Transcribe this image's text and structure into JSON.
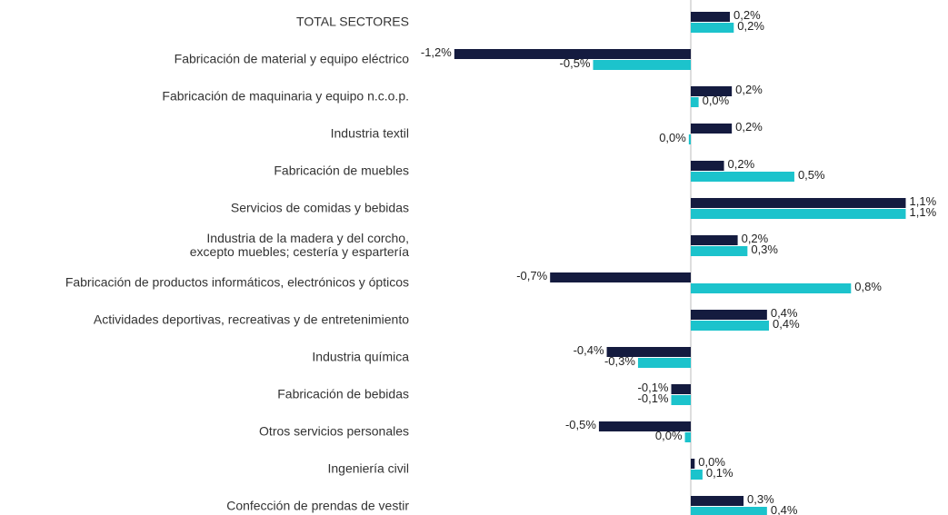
{
  "chart_data": {
    "type": "hbar",
    "categories": [
      "TOTAL SECTORES",
      "Fabricación de material y equipo eléctrico",
      "Fabricación de maquinaria y equipo n.c.o.p.",
      "Industria textil",
      "Fabricación de muebles",
      "Servicios de comidas y bebidas",
      "Industria de la madera y del corcho,\nexcepto muebles; cestería y espartería",
      "Fabricación de productos informáticos, electrónicos y ópticos",
      "Actividades deportivas, recreativas y de entretenimiento",
      "Industria química",
      "Fabricación de bebidas",
      "Otros servicios personales",
      "Ingeniería civil",
      "Confección de prendas de vestir"
    ],
    "series": [
      {
        "color": "#141b3f",
        "values": [
          0.2,
          -1.21,
          0.21,
          0.21,
          0.17,
          1.1,
          0.24,
          -0.72,
          0.39,
          -0.43,
          -0.1,
          -0.47,
          0.02,
          0.27
        ],
        "value_labels": [
          "0,2%",
          "-1,2%",
          "0,2%",
          "0,2%",
          "0,2%",
          "1,1%",
          "0,2%",
          "-0,7%",
          "0,4%",
          "-0,4%",
          "-0,1%",
          "-0,5%",
          "0,0%",
          "0,3%"
        ]
      },
      {
        "color": "#1cc3cc",
        "values": [
          0.22,
          -0.5,
          0.04,
          -0.01,
          0.53,
          1.1,
          0.29,
          0.82,
          0.4,
          -0.27,
          -0.1,
          -0.03,
          0.06,
          0.39
        ],
        "value_labels": [
          "0,2%",
          "-0,5%",
          "0,0%",
          "0,0%",
          "0,5%",
          "1,1%",
          "0,3%",
          "0,8%",
          "0,4%",
          "-0,3%",
          "-0,1%",
          "0,0%",
          "0,1%",
          "0,4%"
        ]
      }
    ],
    "xlim": [
      -1.4,
      1.3
    ]
  }
}
